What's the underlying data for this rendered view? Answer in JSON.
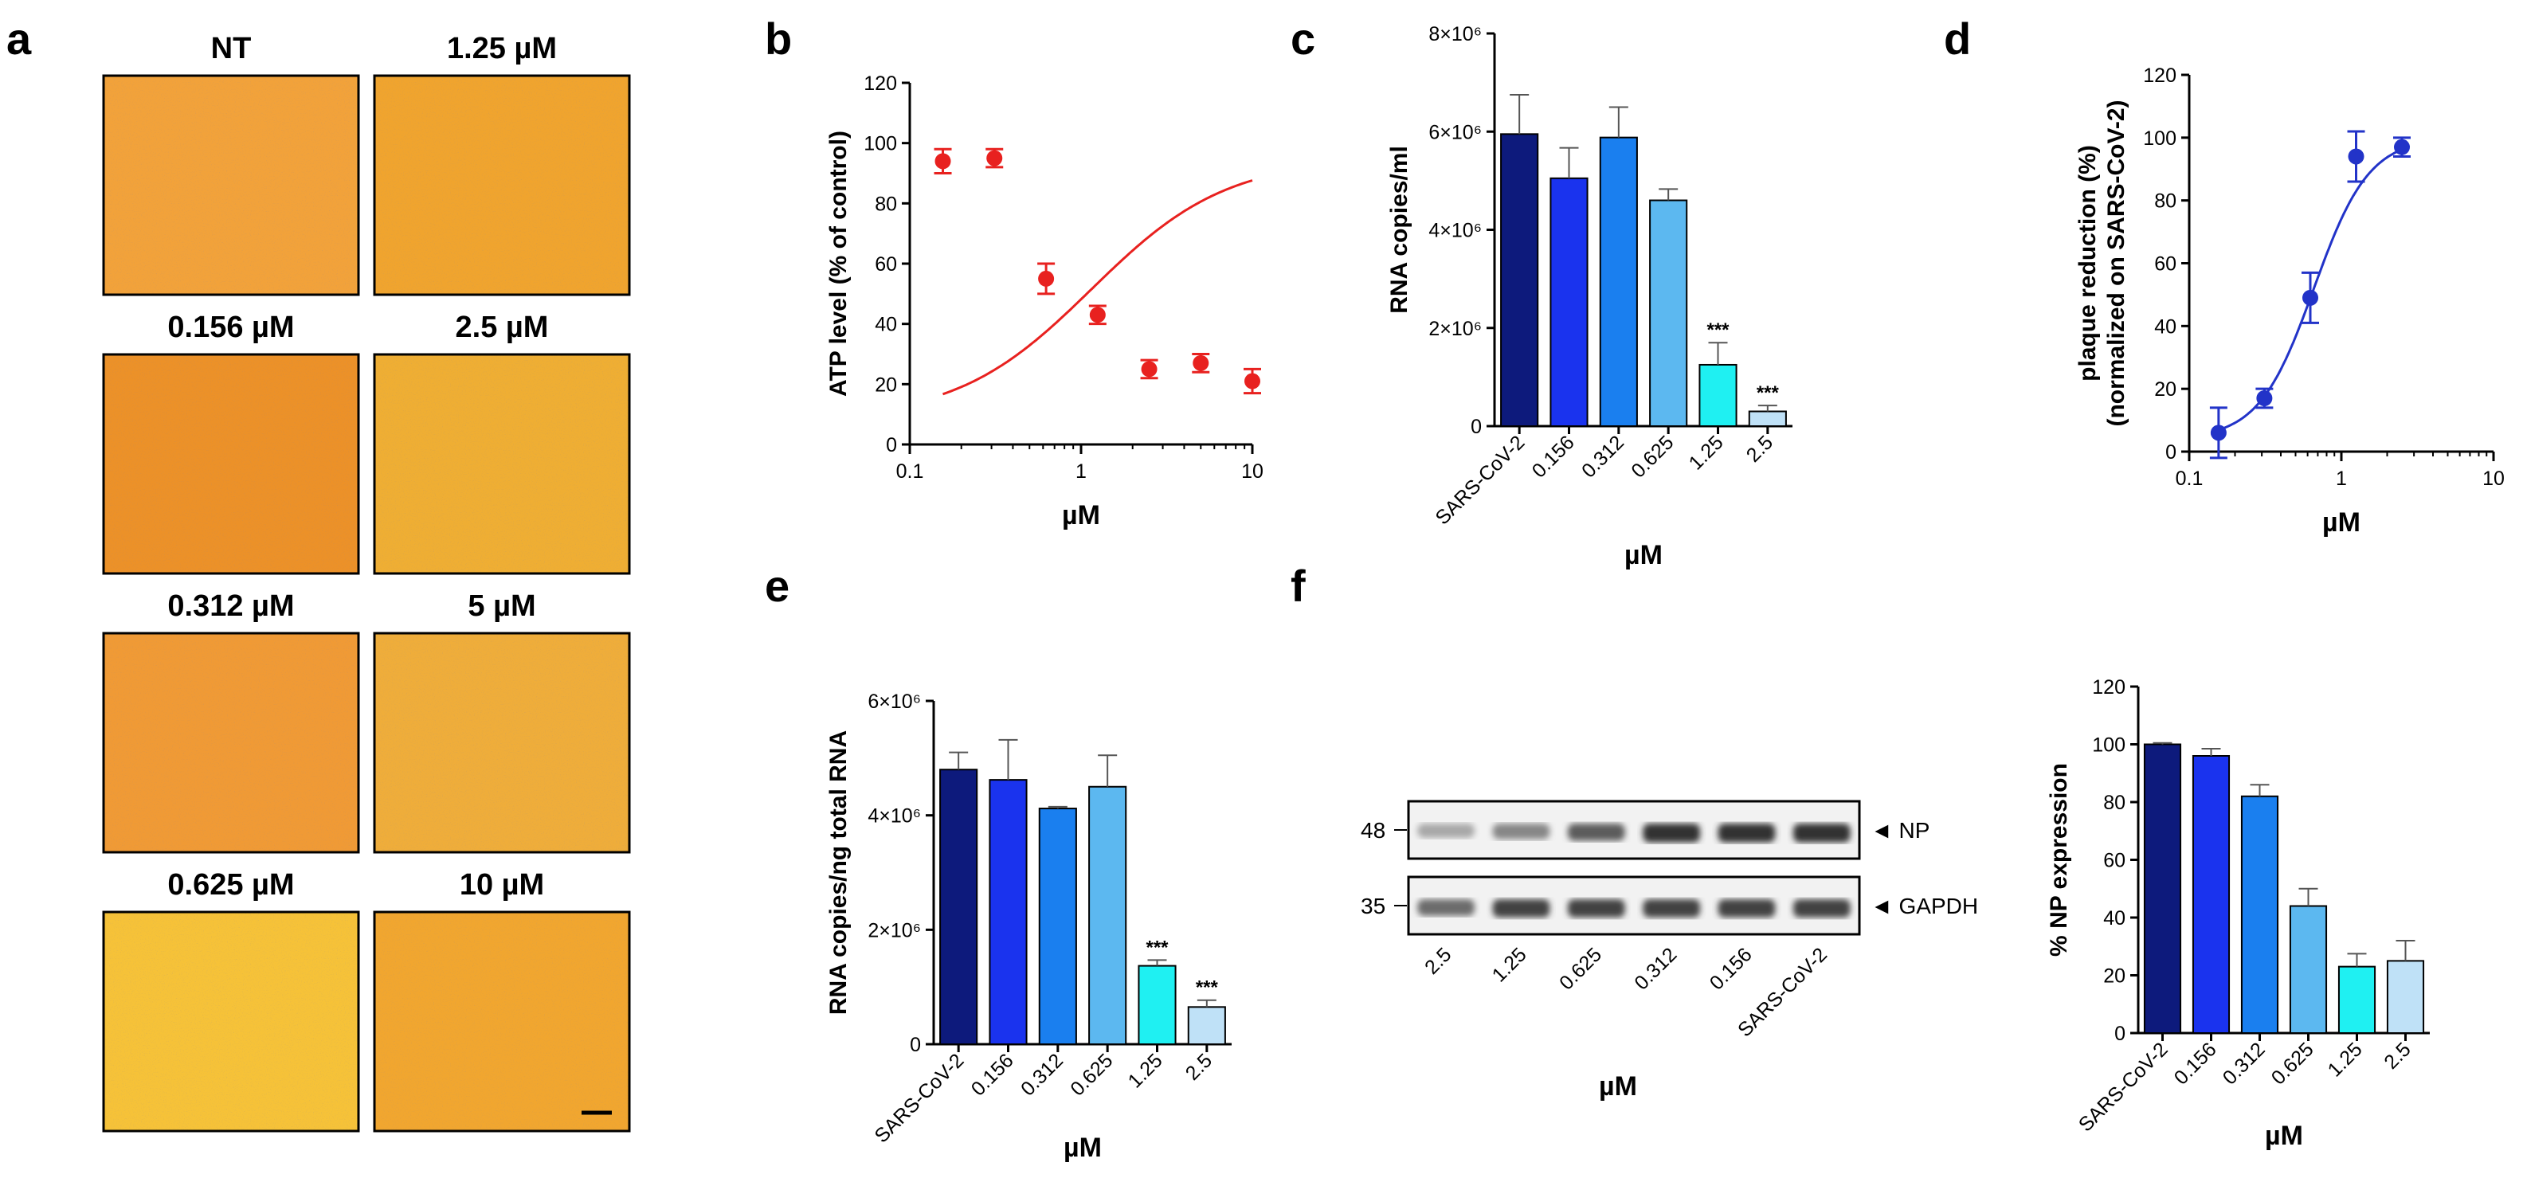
{
  "panel_labels": [
    "a",
    "b",
    "c",
    "d",
    "e",
    "f"
  ],
  "micrographs": {
    "titles": [
      "NT",
      "1.25 µM",
      "0.156 µM",
      "2.5 µM",
      "0.312 µM",
      "5 µM",
      "0.625 µM",
      "10 µM"
    ],
    "colors": [
      "#f2a23a",
      "#f0a42e",
      "#ec9128",
      "#efae33",
      "#f09a35",
      "#efad3a",
      "#f6c238",
      "#f1a62f"
    ]
  },
  "western_blot": {
    "mw_markers": [
      "48",
      "35"
    ],
    "band_labels": [
      "◄ NP",
      "◄ GAPDH"
    ],
    "lane_labels": [
      "2.5",
      "1.25",
      "0.625",
      "0.312",
      "0.156",
      "SARS-CoV-2"
    ],
    "np_intensity": [
      0.25,
      0.45,
      0.7,
      0.95,
      0.95,
      0.95
    ],
    "gapdh_intensity": [
      0.6,
      0.85,
      0.85,
      0.85,
      0.85,
      0.85
    ],
    "xlabel": "µM"
  },
  "chart_data": [
    {
      "id": "b",
      "type": "scatter",
      "xlabel": "µM",
      "ylabel": "ATP level (% of control)",
      "xscale": "log",
      "xlim": [
        0.1,
        10
      ],
      "ylim": [
        0,
        120
      ],
      "xticks": [
        "0.1",
        "1",
        "10"
      ],
      "yticks": [
        "0",
        "20",
        "40",
        "60",
        "80",
        "100",
        "120"
      ],
      "series": [
        {
          "x": [
            0.156,
            0.312,
            0.625,
            1.25,
            2.5,
            5,
            10
          ],
          "y": [
            94,
            95,
            55,
            43,
            25,
            27,
            21
          ],
          "err": [
            4,
            3,
            5,
            3,
            3,
            3,
            4
          ],
          "color": "#e8211f",
          "fit": "sigmoid"
        }
      ]
    },
    {
      "id": "c",
      "type": "bar",
      "xlabel": "µM",
      "ylabel": "RNA copies/ml",
      "ylim": [
        0,
        8000000
      ],
      "yticks": [
        "0",
        "2×10⁶",
        "4×10⁶",
        "6×10⁶",
        "8×10⁶"
      ],
      "categories": [
        "SARS-CoV-2",
        "0.156",
        "0.312",
        "0.625",
        "1.25",
        "2.5"
      ],
      "values": [
        5950000,
        5050000,
        5880000,
        4600000,
        1250000,
        300000
      ],
      "err": [
        800000,
        620000,
        620000,
        230000,
        450000,
        120000
      ],
      "significance": [
        "",
        "",
        "",
        "",
        "***",
        "***"
      ],
      "colors": [
        "#0d1a7c",
        "#1a33ee",
        "#1a7fef",
        "#5cb8f0",
        "#1ff0f2",
        "#bfe1f7"
      ]
    },
    {
      "id": "d",
      "type": "scatter",
      "xlabel": "µM",
      "ylabel": "plaque reduction (%)",
      "ylabel2": "(normalized on SARS-CoV-2)",
      "xscale": "log",
      "xlim": [
        0.1,
        10
      ],
      "ylim": [
        0,
        120
      ],
      "xticks": [
        "0.1",
        "1",
        "10"
      ],
      "yticks": [
        "0",
        "20",
        "40",
        "60",
        "80",
        "100",
        "120"
      ],
      "series": [
        {
          "x": [
            0.156,
            0.312,
            0.625,
            1.25,
            2.5
          ],
          "y": [
            6,
            17,
            49,
            94,
            97
          ],
          "err": [
            8,
            3,
            8,
            8,
            3
          ],
          "color": "#2233c8",
          "fit": "sigmoid"
        }
      ]
    },
    {
      "id": "e",
      "type": "bar",
      "xlabel": "µM",
      "ylabel": "RNA copies/ng total RNA",
      "ylim": [
        0,
        6000000
      ],
      "yticks": [
        "0",
        "2×10⁶",
        "4×10⁶",
        "6×10⁶"
      ],
      "categories": [
        "SARS-CoV-2",
        "0.156",
        "0.312",
        "0.625",
        "1.25",
        "2.5"
      ],
      "values": [
        4800000,
        4620000,
        4120000,
        4500000,
        1370000,
        650000
      ],
      "err": [
        300000,
        700000,
        30000,
        550000,
        100000,
        120000
      ],
      "significance": [
        "",
        "",
        "",
        "",
        "***",
        "***"
      ],
      "colors": [
        "#0d1a7c",
        "#1a33ee",
        "#1a7fef",
        "#5cb8f0",
        "#1ff0f2",
        "#bfe1f7"
      ]
    },
    {
      "id": "f",
      "type": "bar",
      "xlabel": "µM",
      "ylabel": "% NP expression",
      "ylim": [
        0,
        120
      ],
      "yticks": [
        "0",
        "20",
        "40",
        "60",
        "80",
        "100",
        "120"
      ],
      "categories": [
        "SARS-CoV-2",
        "0.156",
        "0.312",
        "0.625",
        "1.25",
        "2.5"
      ],
      "values": [
        100,
        96,
        82,
        44,
        23,
        25
      ],
      "err": [
        0.5,
        2.5,
        4,
        6,
        4.5,
        7
      ],
      "significance": [
        "",
        "",
        "",
        "",
        "",
        ""
      ],
      "colors": [
        "#0d1a7c",
        "#1a33ee",
        "#1a7fef",
        "#5cb8f0",
        "#1ff0f2",
        "#bfe1f7"
      ]
    }
  ]
}
